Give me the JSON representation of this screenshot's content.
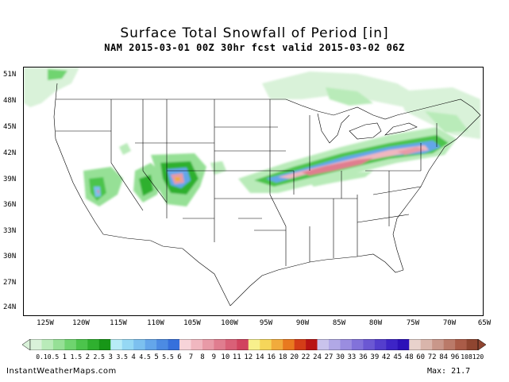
{
  "header": {
    "title": "Surface Total Snowfall of Period [in]",
    "subtitle": "NAM 2015-03-01 00Z 30hr fcst valid 2015-03-02 06Z"
  },
  "map": {
    "lat_labels": [
      "51N",
      "48N",
      "45N",
      "42N",
      "39N",
      "36N",
      "33N",
      "30N",
      "27N",
      "24N"
    ],
    "lon_labels": [
      "125W",
      "120W",
      "115W",
      "110W",
      "105W",
      "100W",
      "95W",
      "90W",
      "85W",
      "80W",
      "75W",
      "70W",
      "65W"
    ]
  },
  "legend": {
    "labels": [
      "0.1",
      "0.5",
      "1",
      "1.5",
      "2",
      "2.5",
      "3",
      "3.5",
      "4",
      "4.5",
      "5",
      "5.5",
      "6",
      "7",
      "8",
      "9",
      "10",
      "11",
      "12",
      "14",
      "16",
      "18",
      "20",
      "22",
      "24",
      "27",
      "30",
      "33",
      "36",
      "39",
      "42",
      "45",
      "48",
      "60",
      "72",
      "84",
      "96",
      "108",
      "120"
    ],
    "colors": [
      "#d9f2d9",
      "#b9ebb9",
      "#96e096",
      "#6fd46f",
      "#4cc44c",
      "#2fb02f",
      "#179617",
      "#b7ecf7",
      "#95d8f4",
      "#7cc0ef",
      "#64a6ea",
      "#4c8be3",
      "#3670dc",
      "#f7d4d9",
      "#f0b7c0",
      "#e89aa7",
      "#e07d8f",
      "#d96077",
      "#d1435e",
      "#f8f08c",
      "#f5d65a",
      "#f1ab3c",
      "#e9791f",
      "#d43d17",
      "#b81313",
      "#c9c3ec",
      "#b1a8e6",
      "#9a8de0",
      "#8272da",
      "#6b58d3",
      "#543ecd",
      "#3d24c6",
      "#2c10b8",
      "#e8d2cc",
      "#d9b5ab",
      "#c9978a",
      "#ba7a69",
      "#aa5c48",
      "#8f4530"
    ]
  },
  "footer": {
    "source": "InstantWeatherMaps.com",
    "max": "Max:  21.7"
  }
}
